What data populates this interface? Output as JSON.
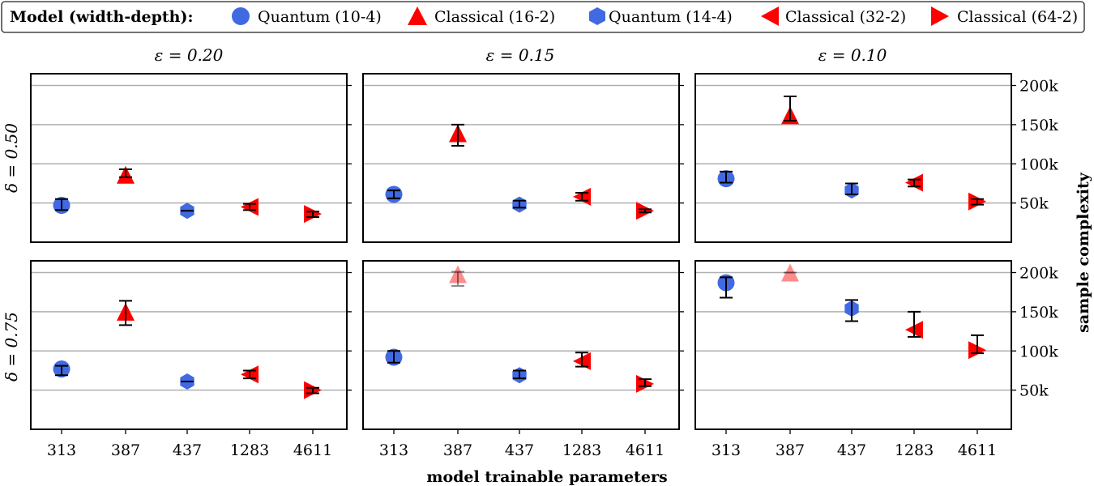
{
  "legend": {
    "title": "Model (width-depth):",
    "entries": [
      {
        "label": "Quantum (10-4)",
        "marker": "circle",
        "color": "#4169e1"
      },
      {
        "label": "Classical (16-2)",
        "marker": "triangle-up",
        "color": "#ff0000"
      },
      {
        "label": "Quantum (14-4)",
        "marker": "hexagon",
        "color": "#4169e1"
      },
      {
        "label": "Classical (32-2)",
        "marker": "triangle-left",
        "color": "#ff0000"
      },
      {
        "label": "Classical (64-2)",
        "marker": "triangle-right",
        "color": "#ff0000"
      }
    ]
  },
  "chart_data": {
    "type": "scatter",
    "xlabel": "model trainable parameters",
    "ylabel": "sample complexity",
    "categories": [
      "313",
      "387",
      "437",
      "1283",
      "4611"
    ],
    "ylim": [
      0,
      215000
    ],
    "yticks": [
      50000,
      100000,
      150000,
      200000
    ],
    "ytick_labels": [
      "50k",
      "100k",
      "150k",
      "200k"
    ],
    "grid": "horizontal",
    "columns": [
      "ε = 0.20",
      "ε = 0.15",
      "ε = 0.10"
    ],
    "rows": [
      "δ = 0.50",
      "δ = 0.75"
    ],
    "panels": [
      {
        "row": 0,
        "col": 0,
        "points": [
          {
            "x": "313",
            "y": 47000,
            "err": [
              41000,
              55000
            ],
            "series": 0
          },
          {
            "x": "387",
            "y": 86000,
            "err": [
              83000,
              93000
            ],
            "series": 1
          },
          {
            "x": "437",
            "y": 40000,
            "err": [
              40000,
              40000
            ],
            "series": 2
          },
          {
            "x": "1283",
            "y": 45000,
            "err": [
              41000,
              49000
            ],
            "series": 3
          },
          {
            "x": "4611",
            "y": 36000,
            "err": [
              32000,
              39000
            ],
            "series": 4
          }
        ]
      },
      {
        "row": 0,
        "col": 1,
        "points": [
          {
            "x": "313",
            "y": 61000,
            "err": [
              56000,
              66000
            ],
            "series": 0
          },
          {
            "x": "387",
            "y": 139000,
            "err": [
              123000,
              150000
            ],
            "series": 1
          },
          {
            "x": "437",
            "y": 48000,
            "err": [
              44000,
              53000
            ],
            "series": 2
          },
          {
            "x": "1283",
            "y": 58000,
            "err": [
              53000,
              63000
            ],
            "series": 3
          },
          {
            "x": "4611",
            "y": 40000,
            "err": [
              38000,
              42000
            ],
            "series": 4
          }
        ]
      },
      {
        "row": 0,
        "col": 2,
        "points": [
          {
            "x": "313",
            "y": 81000,
            "err": [
              76000,
              90000
            ],
            "series": 0
          },
          {
            "x": "387",
            "y": 162000,
            "err": [
              155000,
              186000
            ],
            "series": 1
          },
          {
            "x": "437",
            "y": 66000,
            "err": [
              61000,
              75000
            ],
            "series": 2
          },
          {
            "x": "1283",
            "y": 76000,
            "err": [
              71000,
              80000
            ],
            "series": 3
          },
          {
            "x": "4611",
            "y": 52000,
            "err": [
              48000,
              55000
            ],
            "series": 4
          }
        ]
      },
      {
        "row": 1,
        "col": 0,
        "points": [
          {
            "x": "313",
            "y": 77000,
            "err": [
              69000,
              81000
            ],
            "series": 0
          },
          {
            "x": "387",
            "y": 150000,
            "err": [
              133000,
              164000
            ],
            "series": 1
          },
          {
            "x": "437",
            "y": 61000,
            "err": [
              61000,
              61000
            ],
            "series": 2
          },
          {
            "x": "1283",
            "y": 70000,
            "err": [
              65000,
              75000
            ],
            "series": 3
          },
          {
            "x": "4611",
            "y": 50000,
            "err": [
              46000,
              53000
            ],
            "series": 4
          }
        ]
      },
      {
        "row": 1,
        "col": 1,
        "points": [
          {
            "x": "313",
            "y": 92000,
            "err": [
              85000,
              100000
            ],
            "series": 0
          },
          {
            "x": "387",
            "y": 198000,
            "err": [
              183000,
              201000
            ],
            "series": 1,
            "faded": true
          },
          {
            "x": "437",
            "y": 69000,
            "err": [
              65000,
              75000
            ],
            "series": 2
          },
          {
            "x": "1283",
            "y": 87000,
            "err": [
              80000,
              98000
            ],
            "series": 3
          },
          {
            "x": "4611",
            "y": 58000,
            "err": [
              55000,
              64000
            ],
            "series": 4
          }
        ]
      },
      {
        "row": 1,
        "col": 2,
        "points": [
          {
            "x": "313",
            "y": 187000,
            "err": [
              168000,
              194000
            ],
            "series": 0
          },
          {
            "x": "387",
            "y": 200000,
            "err": [
              200000,
              200000
            ],
            "series": 1,
            "faded": true
          },
          {
            "x": "437",
            "y": 154000,
            "err": [
              138000,
              165000
            ],
            "series": 2
          },
          {
            "x": "1283",
            "y": 127000,
            "err": [
              118000,
              150000
            ],
            "series": 3
          },
          {
            "x": "4611",
            "y": 101000,
            "err": [
              97000,
              120000
            ],
            "series": 4
          }
        ]
      }
    ]
  }
}
